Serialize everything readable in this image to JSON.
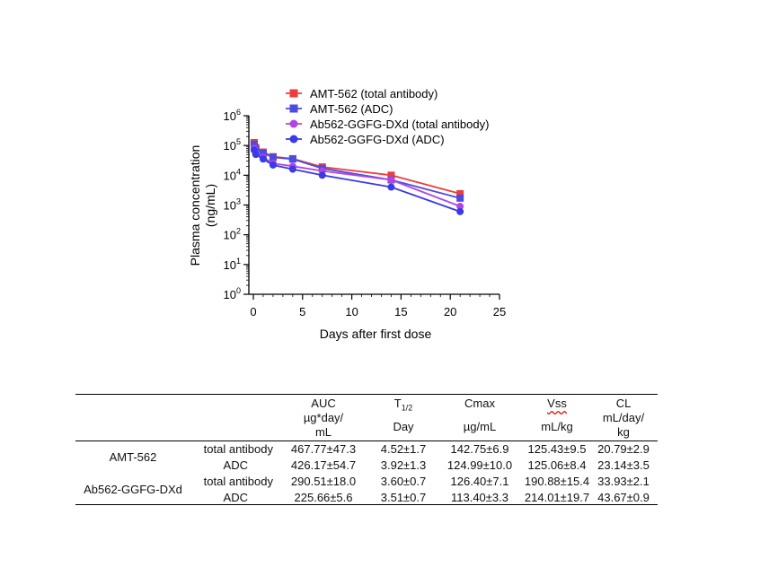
{
  "chart_data": {
    "type": "line",
    "y_scale": "log",
    "xlabel": "Days after first dose",
    "ylabel_line1": "Plasma concentration",
    "ylabel_line2": "(ng/mL)",
    "xlim": [
      0,
      25
    ],
    "ylim": [
      1,
      1000000
    ],
    "x_ticks": [
      0,
      5,
      10,
      15,
      20,
      25
    ],
    "y_ticks": [
      {
        "value": 1,
        "base": "10",
        "exp": "0"
      },
      {
        "value": 10,
        "base": "10",
        "exp": "1"
      },
      {
        "value": 100,
        "base": "10",
        "exp": "2"
      },
      {
        "value": 1000,
        "base": "10",
        "exp": "3"
      },
      {
        "value": 10000,
        "base": "10",
        "exp": "4"
      },
      {
        "value": 100000,
        "base": "10",
        "exp": "5"
      },
      {
        "value": 1000000,
        "base": "10",
        "exp": "6"
      }
    ],
    "legend_position": "top",
    "series": [
      {
        "name": "AMT-562 (total antibody)",
        "color": "#ee3b3b",
        "marker": "square",
        "x": [
          0.08,
          0.25,
          1,
          2,
          4,
          7,
          14,
          21
        ],
        "y": [
          125000,
          85000,
          60000,
          42000,
          36000,
          19000,
          10000,
          2400
        ]
      },
      {
        "name": "AMT-562 (ADC)",
        "color": "#4b4be0",
        "marker": "square",
        "x": [
          0.08,
          0.25,
          1,
          2,
          4,
          7,
          14,
          21
        ],
        "y": [
          110000,
          75000,
          55000,
          40000,
          35000,
          17000,
          7000,
          1700
        ]
      },
      {
        "name": "Ab562-GGFG-DXd (total antibody)",
        "color": "#b344e0",
        "marker": "circle",
        "x": [
          0.08,
          0.25,
          1,
          2,
          4,
          7,
          14,
          21
        ],
        "y": [
          80000,
          55000,
          40000,
          25000,
          20000,
          14000,
          7000,
          900
        ]
      },
      {
        "name": "Ab562-GGFG-DXd (ADC)",
        "color": "#3a3ae6",
        "marker": "circle",
        "x": [
          0.08,
          0.25,
          1,
          2,
          4,
          7,
          14,
          21
        ],
        "y": [
          70000,
          50000,
          35000,
          22000,
          16000,
          10000,
          4000,
          600
        ]
      }
    ]
  },
  "table": {
    "headers": {
      "auc": {
        "l1": "AUC",
        "l2": "µg*day/",
        "l3": "mL"
      },
      "thalf": {
        "main": "T",
        "sub": "1/2",
        "unit": "Day"
      },
      "cmax": {
        "l1": "Cmax",
        "l2": "µg/mL"
      },
      "vss": {
        "l1": "Vss",
        "l2": "mL/kg"
      },
      "cl": {
        "l1": "CL",
        "l2": "mL/day/",
        "l3": "kg"
      }
    },
    "groups": [
      {
        "name": "AMT-562",
        "rows": [
          {
            "analyte": "total antibody",
            "auc": "467.77±47.3",
            "thalf": "4.52±1.7",
            "cmax": "142.75±6.9",
            "vss": "125.43±9.5",
            "cl": "20.79±2.9"
          },
          {
            "analyte": "ADC",
            "auc": "426.17±54.7",
            "thalf": "3.92±1.3",
            "cmax": "124.99±10.0",
            "vss": "125.06±8.4",
            "cl": "23.14±3.5"
          }
        ]
      },
      {
        "name": "Ab562-GGFG-DXd",
        "rows": [
          {
            "analyte": "total antibody",
            "auc": "290.51±18.0",
            "thalf": "3.60±0.7",
            "cmax": "126.40±7.1",
            "vss": "190.88±15.4",
            "cl": "33.93±2.1"
          },
          {
            "analyte": "ADC",
            "auc": "225.66±5.6",
            "thalf": "3.51±0.7",
            "cmax": "113.40±3.3",
            "vss": "214.01±19.7",
            "cl": "43.67±0.9"
          }
        ]
      }
    ]
  }
}
